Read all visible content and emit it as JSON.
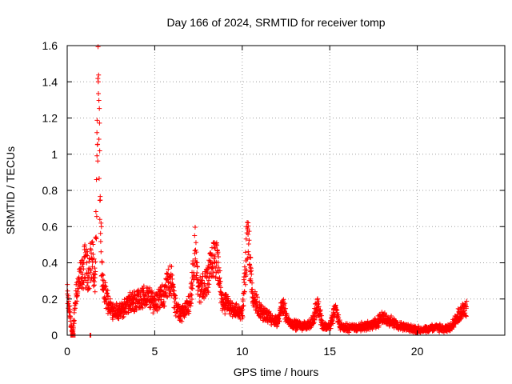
{
  "colors": {
    "series": "#ff0000",
    "background": "#ffffff"
  },
  "chart_data": {
    "type": "scatter",
    "title": "Day 166 of 2024, SRMTID for receiver tomp",
    "xlabel": "GPS time / hours",
    "ylabel": "SRMTID / TECUs",
    "xlim": [
      0,
      25
    ],
    "ylim": [
      0,
      1.6
    ],
    "xticks": [
      0,
      5,
      10,
      15,
      20
    ],
    "yticks": [
      0,
      0.2,
      0.4,
      0.6,
      0.8,
      1,
      1.2,
      1.4,
      1.6
    ],
    "xtick_labels": [
      "0",
      "5",
      "10",
      "15",
      "20"
    ],
    "ytick_labels": [
      "0",
      "0.2",
      "0.4",
      "0.6",
      "0.8",
      "1",
      "1.2",
      "1.4",
      "1.6"
    ],
    "grid": true,
    "marker": "plus",
    "series": [
      {
        "name": "SRMTID",
        "profile": [
          [
            0.0,
            0.22
          ],
          [
            0.3,
            0.0
          ],
          [
            0.5,
            0.25
          ],
          [
            0.8,
            0.33
          ],
          [
            1.0,
            0.4
          ],
          [
            1.2,
            0.35
          ],
          [
            1.4,
            0.45
          ],
          [
            1.6,
            0.3
          ],
          [
            1.75,
            1.43
          ],
          [
            1.9,
            0.6
          ],
          [
            2.0,
            0.28
          ],
          [
            2.2,
            0.22
          ],
          [
            2.5,
            0.15
          ],
          [
            3.0,
            0.13
          ],
          [
            3.5,
            0.18
          ],
          [
            4.0,
            0.2
          ],
          [
            4.5,
            0.22
          ],
          [
            5.0,
            0.19
          ],
          [
            5.5,
            0.22
          ],
          [
            5.9,
            0.34
          ],
          [
            6.2,
            0.15
          ],
          [
            6.5,
            0.12
          ],
          [
            7.0,
            0.18
          ],
          [
            7.3,
            0.48
          ],
          [
            7.5,
            0.25
          ],
          [
            7.8,
            0.28
          ],
          [
            8.0,
            0.3
          ],
          [
            8.3,
            0.43
          ],
          [
            8.6,
            0.4
          ],
          [
            8.8,
            0.2
          ],
          [
            9.2,
            0.16
          ],
          [
            9.6,
            0.14
          ],
          [
            10.0,
            0.12
          ],
          [
            10.3,
            0.58
          ],
          [
            10.6,
            0.22
          ],
          [
            11.0,
            0.14
          ],
          [
            11.5,
            0.1
          ],
          [
            12.0,
            0.07
          ],
          [
            12.3,
            0.18
          ],
          [
            12.6,
            0.08
          ],
          [
            13.0,
            0.06
          ],
          [
            13.5,
            0.05
          ],
          [
            14.0,
            0.07
          ],
          [
            14.3,
            0.18
          ],
          [
            14.6,
            0.05
          ],
          [
            15.0,
            0.05
          ],
          [
            15.3,
            0.15
          ],
          [
            15.6,
            0.05
          ],
          [
            16.0,
            0.04
          ],
          [
            17.0,
            0.05
          ],
          [
            17.5,
            0.06
          ],
          [
            18.0,
            0.1
          ],
          [
            18.5,
            0.08
          ],
          [
            19.0,
            0.05
          ],
          [
            19.5,
            0.04
          ],
          [
            20.0,
            0.03
          ],
          [
            20.5,
            0.03
          ],
          [
            21.0,
            0.05
          ],
          [
            21.5,
            0.03
          ],
          [
            22.0,
            0.06
          ],
          [
            22.4,
            0.12
          ],
          [
            22.8,
            0.17
          ]
        ],
        "zero_points": [
          0.2,
          0.3,
          0.4,
          1.3
        ]
      }
    ]
  }
}
